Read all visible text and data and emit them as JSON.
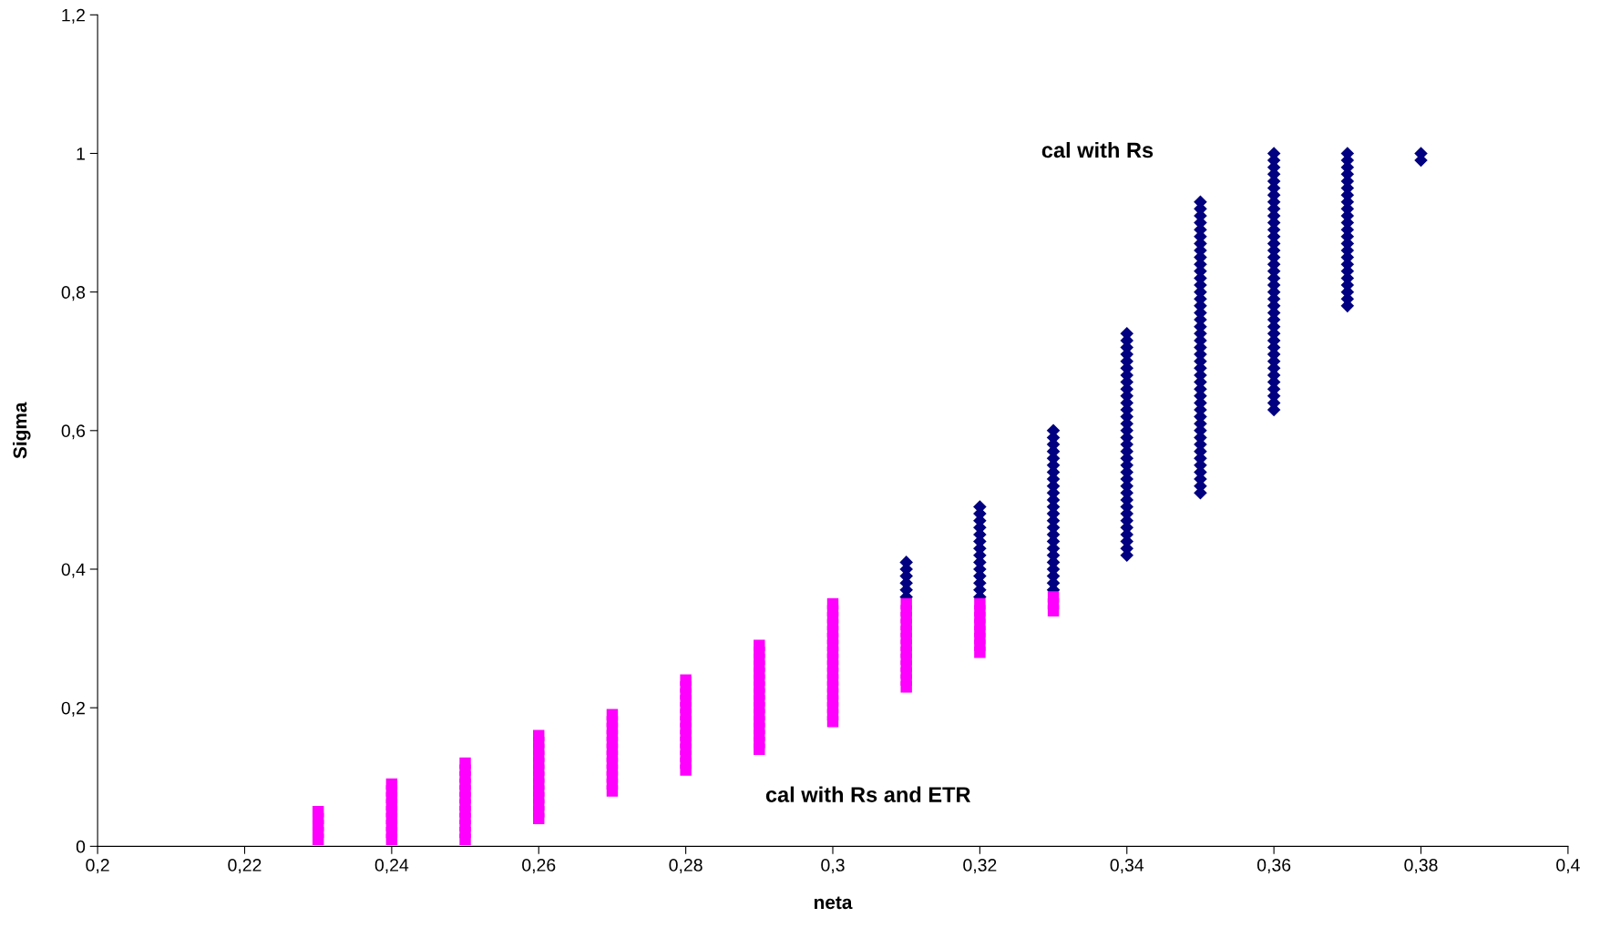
{
  "chart_data": {
    "type": "scatter",
    "xlabel": "neta",
    "ylabel": "Sigma",
    "xlim": [
      0.2,
      0.4
    ],
    "ylim": [
      0,
      1.2
    ],
    "xticks": [
      {
        "value": 0.2,
        "label": "0,2"
      },
      {
        "value": 0.22,
        "label": "0,22"
      },
      {
        "value": 0.24,
        "label": "0,24"
      },
      {
        "value": 0.26,
        "label": "0,26"
      },
      {
        "value": 0.28,
        "label": "0,28"
      },
      {
        "value": 0.3,
        "label": "0,3"
      },
      {
        "value": 0.32,
        "label": "0,32"
      },
      {
        "value": 0.34,
        "label": "0,34"
      },
      {
        "value": 0.36,
        "label": "0,36"
      },
      {
        "value": 0.38,
        "label": "0,38"
      },
      {
        "value": 0.4,
        "label": "0,4"
      }
    ],
    "yticks": [
      0,
      {
        "value": 0.2,
        "label": "0,2"
      },
      {
        "value": 0.4,
        "label": "0,4"
      },
      {
        "value": 0.6,
        "label": "0,6"
      },
      {
        "value": 0.8,
        "label": "0,8"
      },
      1,
      {
        "value": 1.2,
        "label": "1,2"
      }
    ],
    "grid": false,
    "legend": false,
    "series": [
      {
        "name": "cal with Rs",
        "color": "#000080",
        "marker": "diamond",
        "x": [
          0.31,
          0.31,
          0.31,
          0.31,
          0.31,
          0.31,
          0.32,
          0.32,
          0.32,
          0.32,
          0.32,
          0.32,
          0.32,
          0.32,
          0.32,
          0.32,
          0.32,
          0.32,
          0.32,
          0.32,
          0.33,
          0.33,
          0.33,
          0.33,
          0.33,
          0.33,
          0.33,
          0.33,
          0.33,
          0.33,
          0.33,
          0.33,
          0.33,
          0.33,
          0.33,
          0.33,
          0.33,
          0.33,
          0.33,
          0.33,
          0.33,
          0.33,
          0.33,
          0.33,
          0.34,
          0.34,
          0.34,
          0.34,
          0.34,
          0.34,
          0.34,
          0.34,
          0.34,
          0.34,
          0.34,
          0.34,
          0.34,
          0.34,
          0.34,
          0.34,
          0.34,
          0.34,
          0.34,
          0.34,
          0.34,
          0.34,
          0.34,
          0.34,
          0.34,
          0.34,
          0.34,
          0.34,
          0.34,
          0.34,
          0.34,
          0.34,
          0.34,
          0.35,
          0.35,
          0.35,
          0.35,
          0.35,
          0.35,
          0.35,
          0.35,
          0.35,
          0.35,
          0.35,
          0.35,
          0.35,
          0.35,
          0.35,
          0.35,
          0.35,
          0.35,
          0.35,
          0.35,
          0.35,
          0.35,
          0.35,
          0.35,
          0.35,
          0.35,
          0.35,
          0.35,
          0.35,
          0.35,
          0.35,
          0.35,
          0.35,
          0.35,
          0.35,
          0.35,
          0.35,
          0.35,
          0.35,
          0.35,
          0.35,
          0.35,
          0.35,
          0.36,
          0.36,
          0.36,
          0.36,
          0.36,
          0.36,
          0.36,
          0.36,
          0.36,
          0.36,
          0.36,
          0.36,
          0.36,
          0.36,
          0.36,
          0.36,
          0.36,
          0.36,
          0.36,
          0.36,
          0.36,
          0.36,
          0.36,
          0.36,
          0.36,
          0.36,
          0.36,
          0.36,
          0.36,
          0.36,
          0.36,
          0.36,
          0.36,
          0.36,
          0.36,
          0.36,
          0.36,
          0.36,
          0.37,
          0.37,
          0.37,
          0.37,
          0.37,
          0.37,
          0.37,
          0.37,
          0.37,
          0.37,
          0.37,
          0.37,
          0.37,
          0.37,
          0.37,
          0.37,
          0.37,
          0.37,
          0.37,
          0.37,
          0.37,
          0.37,
          0.37,
          0.38,
          0.38
        ],
        "values": [
          0.36,
          0.37,
          0.38,
          0.39,
          0.4,
          0.41,
          0.36,
          0.37,
          0.38,
          0.39,
          0.4,
          0.41,
          0.42,
          0.43,
          0.44,
          0.45,
          0.46,
          0.47,
          0.48,
          0.49,
          0.37,
          0.38,
          0.39,
          0.4,
          0.41,
          0.42,
          0.43,
          0.44,
          0.45,
          0.46,
          0.47,
          0.48,
          0.49,
          0.5,
          0.51,
          0.52,
          0.53,
          0.54,
          0.55,
          0.56,
          0.57,
          0.58,
          0.59,
          0.6,
          0.42,
          0.43,
          0.44,
          0.45,
          0.46,
          0.47,
          0.48,
          0.49,
          0.5,
          0.51,
          0.52,
          0.53,
          0.54,
          0.55,
          0.56,
          0.57,
          0.58,
          0.59,
          0.6,
          0.61,
          0.62,
          0.63,
          0.64,
          0.65,
          0.66,
          0.67,
          0.68,
          0.69,
          0.7,
          0.71,
          0.72,
          0.73,
          0.74,
          0.51,
          0.52,
          0.53,
          0.54,
          0.55,
          0.56,
          0.57,
          0.58,
          0.59,
          0.6,
          0.61,
          0.62,
          0.63,
          0.64,
          0.65,
          0.66,
          0.67,
          0.68,
          0.69,
          0.7,
          0.71,
          0.72,
          0.73,
          0.74,
          0.75,
          0.76,
          0.77,
          0.78,
          0.79,
          0.8,
          0.81,
          0.82,
          0.83,
          0.84,
          0.85,
          0.86,
          0.87,
          0.88,
          0.89,
          0.9,
          0.91,
          0.92,
          0.93,
          0.63,
          0.64,
          0.65,
          0.66,
          0.67,
          0.68,
          0.69,
          0.7,
          0.71,
          0.72,
          0.73,
          0.74,
          0.75,
          0.76,
          0.77,
          0.78,
          0.79,
          0.8,
          0.81,
          0.82,
          0.83,
          0.84,
          0.85,
          0.86,
          0.87,
          0.88,
          0.89,
          0.9,
          0.91,
          0.92,
          0.93,
          0.94,
          0.95,
          0.96,
          0.97,
          0.98,
          0.99,
          1.0,
          0.78,
          0.79,
          0.8,
          0.81,
          0.82,
          0.83,
          0.84,
          0.85,
          0.86,
          0.87,
          0.88,
          0.89,
          0.9,
          0.91,
          0.92,
          0.93,
          0.94,
          0.95,
          0.96,
          0.97,
          0.98,
          0.99,
          1.0,
          0.99,
          1.0
        ]
      },
      {
        "name": "cal with Rs and ETR",
        "color": "#ff00ff",
        "marker": "square",
        "x": [
          0.23,
          0.23,
          0.23,
          0.23,
          0.23,
          0.24,
          0.24,
          0.24,
          0.24,
          0.24,
          0.24,
          0.24,
          0.24,
          0.24,
          0.25,
          0.25,
          0.25,
          0.25,
          0.25,
          0.25,
          0.25,
          0.25,
          0.25,
          0.25,
          0.25,
          0.25,
          0.26,
          0.26,
          0.26,
          0.26,
          0.26,
          0.26,
          0.26,
          0.26,
          0.26,
          0.26,
          0.26,
          0.26,
          0.26,
          0.27,
          0.27,
          0.27,
          0.27,
          0.27,
          0.27,
          0.27,
          0.27,
          0.27,
          0.27,
          0.27,
          0.27,
          0.28,
          0.28,
          0.28,
          0.28,
          0.28,
          0.28,
          0.28,
          0.28,
          0.28,
          0.28,
          0.28,
          0.28,
          0.28,
          0.28,
          0.29,
          0.29,
          0.29,
          0.29,
          0.29,
          0.29,
          0.29,
          0.29,
          0.29,
          0.29,
          0.29,
          0.29,
          0.29,
          0.29,
          0.29,
          0.29,
          0.3,
          0.3,
          0.3,
          0.3,
          0.3,
          0.3,
          0.3,
          0.3,
          0.3,
          0.3,
          0.3,
          0.3,
          0.3,
          0.3,
          0.3,
          0.3,
          0.3,
          0.3,
          0.31,
          0.31,
          0.31,
          0.31,
          0.31,
          0.31,
          0.31,
          0.31,
          0.31,
          0.31,
          0.31,
          0.31,
          0.31,
          0.32,
          0.32,
          0.32,
          0.32,
          0.32,
          0.32,
          0.32,
          0.32,
          0.33,
          0.33,
          0.33
        ],
        "values": [
          0.01,
          0.02,
          0.03,
          0.04,
          0.05,
          0.01,
          0.02,
          0.03,
          0.04,
          0.05,
          0.06,
          0.07,
          0.08,
          0.09,
          0.01,
          0.02,
          0.03,
          0.04,
          0.05,
          0.06,
          0.07,
          0.08,
          0.09,
          0.1,
          0.11,
          0.12,
          0.04,
          0.05,
          0.06,
          0.07,
          0.08,
          0.09,
          0.1,
          0.11,
          0.12,
          0.13,
          0.14,
          0.15,
          0.16,
          0.08,
          0.09,
          0.1,
          0.11,
          0.12,
          0.13,
          0.14,
          0.15,
          0.16,
          0.17,
          0.18,
          0.19,
          0.11,
          0.12,
          0.13,
          0.14,
          0.15,
          0.16,
          0.17,
          0.18,
          0.19,
          0.2,
          0.21,
          0.22,
          0.23,
          0.24,
          0.14,
          0.15,
          0.16,
          0.17,
          0.18,
          0.19,
          0.2,
          0.21,
          0.22,
          0.23,
          0.24,
          0.25,
          0.26,
          0.27,
          0.28,
          0.29,
          0.18,
          0.19,
          0.2,
          0.21,
          0.22,
          0.23,
          0.24,
          0.25,
          0.26,
          0.27,
          0.28,
          0.29,
          0.3,
          0.31,
          0.32,
          0.33,
          0.34,
          0.35,
          0.23,
          0.24,
          0.25,
          0.26,
          0.27,
          0.28,
          0.29,
          0.3,
          0.31,
          0.32,
          0.33,
          0.34,
          0.35,
          0.28,
          0.29,
          0.3,
          0.31,
          0.32,
          0.33,
          0.34,
          0.35,
          0.34,
          0.35,
          0.36
        ]
      }
    ]
  }
}
